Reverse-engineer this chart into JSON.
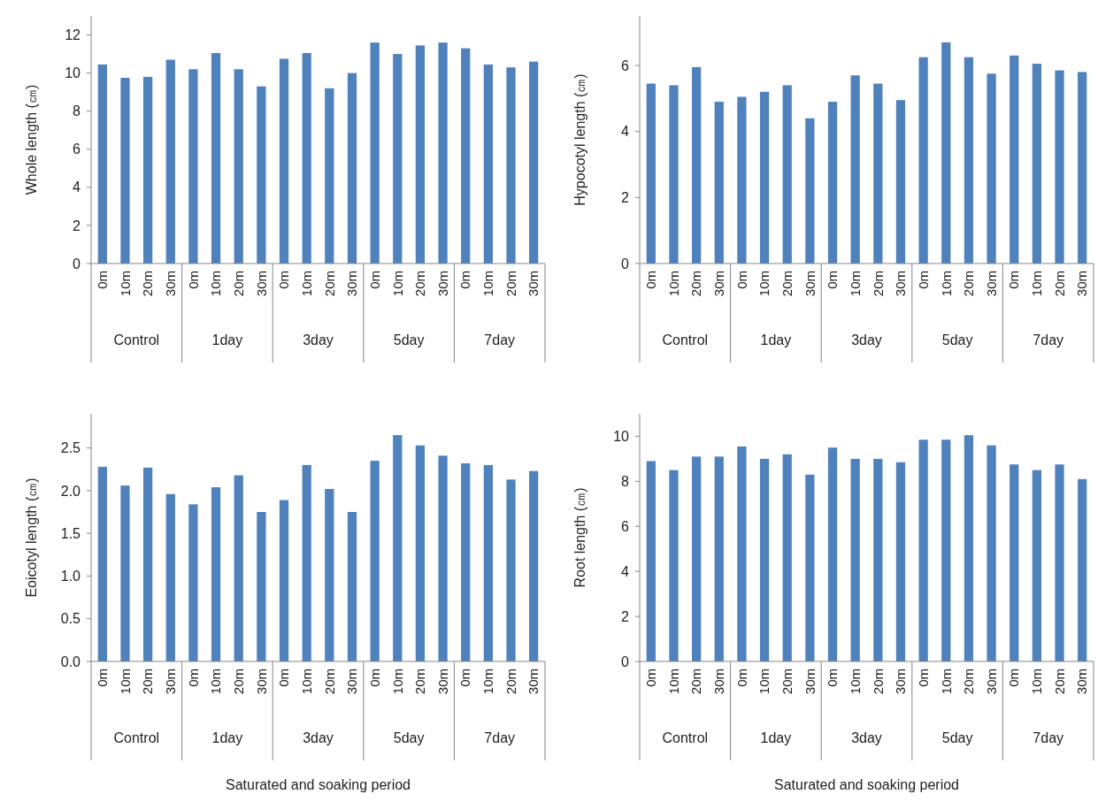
{
  "chart_data": [
    {
      "type": "bar",
      "ylabel": "Whole length (㎝)",
      "categories": [
        "0m",
        "10m",
        "20m",
        "30m",
        "0m",
        "10m",
        "20m",
        "30m",
        "0m",
        "10m",
        "20m",
        "30m",
        "0m",
        "10m",
        "20m",
        "30m",
        "0m",
        "10m",
        "20m",
        "30m"
      ],
      "values": [
        10.45,
        9.75,
        9.8,
        10.7,
        10.2,
        11.05,
        10.2,
        9.3,
        10.75,
        11.05,
        9.2,
        10.0,
        11.6,
        11.0,
        11.45,
        11.6,
        11.3,
        10.45,
        10.3,
        10.6
      ],
      "color": "#4f81bd",
      "ylim": [
        0,
        13
      ],
      "yticks": [
        0,
        2,
        4,
        6,
        8,
        10,
        12
      ],
      "annotations": [
        "Control",
        "1day",
        "3day",
        "5day",
        "7day"
      ]
    },
    {
      "type": "bar",
      "ylabel": "Hypocotyl length (㎝)",
      "categories": [
        "0m",
        "10m",
        "20m",
        "30m",
        "0m",
        "10m",
        "20m",
        "30m",
        "0m",
        "10m",
        "20m",
        "30m",
        "0m",
        "10m",
        "20m",
        "30m",
        "0m",
        "10m",
        "20m",
        "30m"
      ],
      "values": [
        5.45,
        5.4,
        5.95,
        4.9,
        5.05,
        5.2,
        5.4,
        4.4,
        4.9,
        5.7,
        5.45,
        4.95,
        6.25,
        6.7,
        6.25,
        5.75,
        6.3,
        6.05,
        5.85,
        5.8
      ],
      "color": "#4f81bd",
      "ylim": [
        0,
        7.5
      ],
      "yticks": [
        0,
        2,
        4,
        6
      ],
      "annotations": [
        "Control",
        "1day",
        "3day",
        "5day",
        "7day"
      ]
    },
    {
      "type": "bar",
      "xlabel": "Saturated and soaking period",
      "ylabel": "Eoicotyl length (㎝)",
      "categories": [
        "0m",
        "10m",
        "20m",
        "30m",
        "0m",
        "10m",
        "20m",
        "30m",
        "0m",
        "10m",
        "20m",
        "30m",
        "0m",
        "10m",
        "20m",
        "30m",
        "0m",
        "10m",
        "20m",
        "30m"
      ],
      "values": [
        2.28,
        2.06,
        2.27,
        1.96,
        1.84,
        2.04,
        2.18,
        1.75,
        1.89,
        2.3,
        2.02,
        1.75,
        2.35,
        2.65,
        2.53,
        2.41,
        2.32,
        2.3,
        2.13,
        2.23
      ],
      "color": "#4f81bd",
      "ylim": [
        0,
        2.9
      ],
      "yticks": [
        {
          "value": 0,
          "label": "0.0"
        },
        {
          "value": 0.5,
          "label": "0.5"
        },
        {
          "value": 1,
          "label": "1.0"
        },
        {
          "value": 1.5,
          "label": "1.5"
        },
        {
          "value": 2,
          "label": "2.0"
        },
        {
          "value": 2.5,
          "label": "2.5"
        }
      ],
      "annotations": [
        "Control",
        "1day",
        "3day",
        "5day",
        "7day"
      ]
    },
    {
      "type": "bar",
      "xlabel": "Saturated and soaking period",
      "ylabel": "Root length (㎝)",
      "categories": [
        "0m",
        "10m",
        "20m",
        "30m",
        "0m",
        "10m",
        "20m",
        "30m",
        "0m",
        "10m",
        "20m",
        "30m",
        "0m",
        "10m",
        "20m",
        "30m",
        "0m",
        "10m",
        "20m",
        "30m"
      ],
      "values": [
        8.9,
        8.5,
        9.1,
        9.1,
        9.55,
        9.0,
        9.2,
        8.3,
        9.5,
        9.0,
        9.0,
        8.85,
        9.85,
        9.85,
        10.05,
        9.6,
        8.75,
        8.5,
        8.75,
        8.1
      ],
      "color": "#4f81bd",
      "ylim": [
        0,
        11
      ],
      "yticks": [
        0,
        2,
        4,
        6,
        8,
        10
      ],
      "annotations": [
        "Control",
        "1day",
        "3day",
        "5day",
        "7day"
      ]
    }
  ]
}
